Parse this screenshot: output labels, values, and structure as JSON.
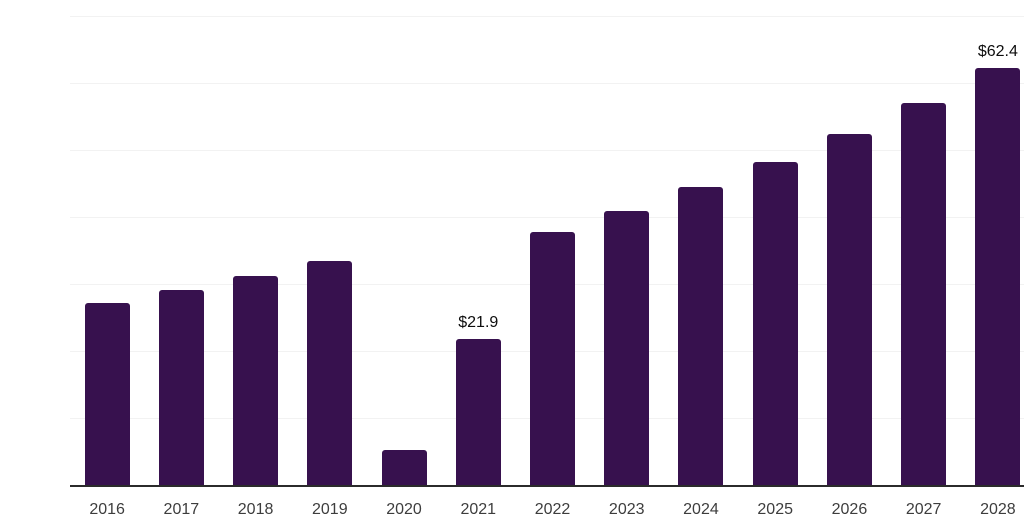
{
  "chart_data": {
    "type": "bar",
    "title": "",
    "xlabel": "",
    "ylabel": "",
    "categories": [
      "2016",
      "2017",
      "2018",
      "2019",
      "2020",
      "2021",
      "2022",
      "2023",
      "2024",
      "2025",
      "2026",
      "2027",
      "2028"
    ],
    "values": [
      27.3,
      29.3,
      31.3,
      33.6,
      5.4,
      21.9,
      37.9,
      41.1,
      44.6,
      48.3,
      52.6,
      57.2,
      62.4
    ],
    "data_labels": {
      "2021": "$21.9",
      "2028": "$62.4"
    },
    "ylim": [
      0,
      70
    ],
    "gridline_interval": 10,
    "grid": "horizontal",
    "legend_position": "none",
    "colors": {
      "bar": "#37114E",
      "axis_line": "#2b2b2b",
      "gridline": "#f2f2f2",
      "data_label_text": "#0d0d0d",
      "tick_label_text": "#3d3d3d",
      "background": "#ffffff"
    }
  }
}
